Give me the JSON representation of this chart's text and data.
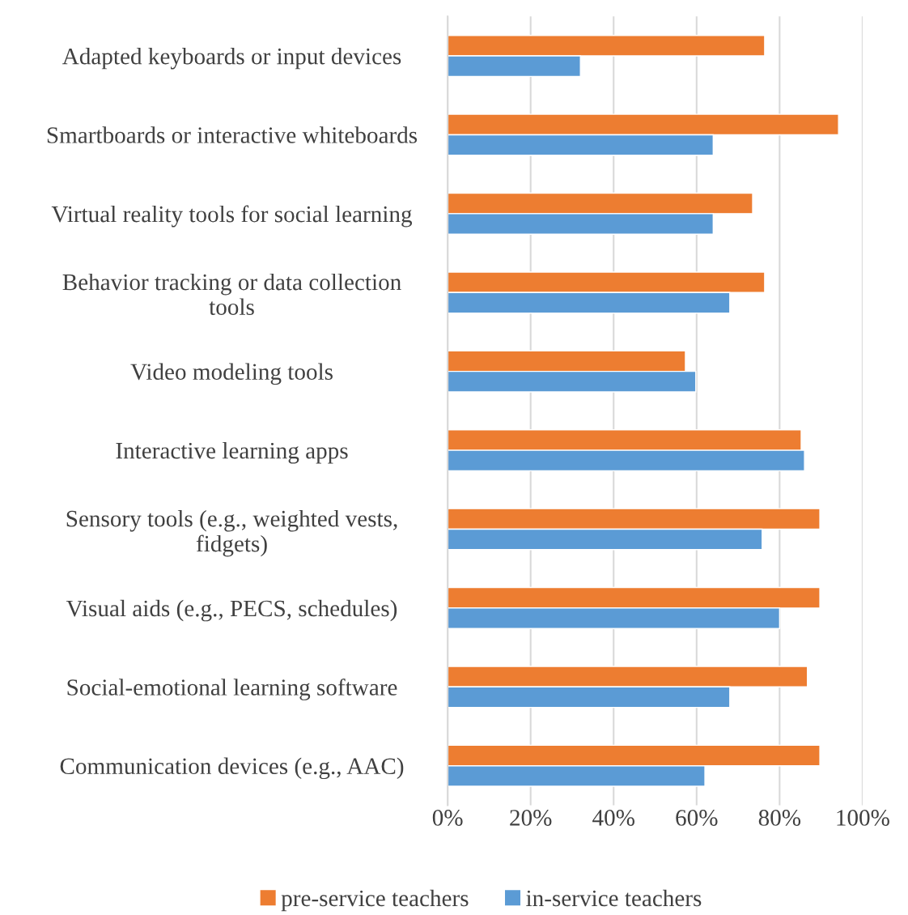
{
  "chart_data": {
    "type": "bar",
    "orientation": "horizontal",
    "categories": [
      "Adapted keyboards or input devices",
      "Smartboards or interactive whiteboards",
      "Virtual reality tools for social learning",
      "Behavior tracking or data collection\ntools",
      "Video modeling tools",
      "Interactive learning apps",
      "Sensory tools (e.g., weighted vests,\nfidgets)",
      "Visual aids (e.g., PECS, schedules)",
      "Social-emotional learning software",
      "Communication devices (e.g., AAC)"
    ],
    "series": [
      {
        "name": "pre-service teachers",
        "color": "#ed7d31",
        "values": [
          76.4,
          94.2,
          73.5,
          76.4,
          57.3,
          85.2,
          89.7,
          89.7,
          86.7,
          89.7
        ]
      },
      {
        "name": "in-service teachers",
        "color": "#5b9bd5",
        "values": [
          32,
          64,
          64,
          68,
          59.8,
          86,
          75.8,
          80,
          68,
          62
        ]
      }
    ],
    "xlim": [
      0,
      100
    ],
    "xticks": [
      {
        "value": 0,
        "label": "0%"
      },
      {
        "value": 20,
        "label": "20%"
      },
      {
        "value": 40,
        "label": "40%"
      },
      {
        "value": 60,
        "label": "60%"
      },
      {
        "value": 80,
        "label": "80%"
      },
      {
        "value": 100,
        "label": "100%"
      }
    ],
    "grid": "x",
    "legend": "bottom"
  }
}
